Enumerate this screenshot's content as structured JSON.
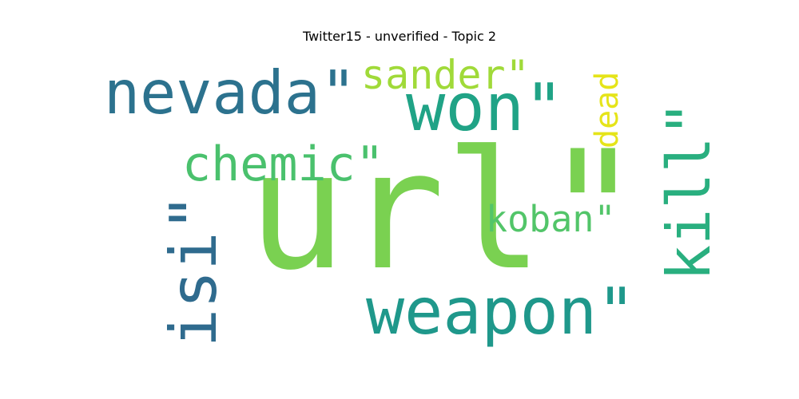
{
  "chart_data": {
    "type": "wordcloud",
    "title": "Twitter15 - unverified - Topic 2",
    "words": [
      {
        "text": "url\"",
        "color": "#7ad151",
        "weight": 1.0
      },
      {
        "text": "won\"",
        "color": "#20a386",
        "weight": 0.55
      },
      {
        "text": "nevada\"",
        "color": "#2c728e",
        "weight": 0.5
      },
      {
        "text": "weapon\"",
        "color": "#1f988b",
        "weight": 0.52
      },
      {
        "text": "isi\"",
        "color": "#2f6b8e",
        "weight": 0.55
      },
      {
        "text": "kill\"",
        "color": "#29af7f",
        "weight": 0.48
      },
      {
        "text": "chemic\"",
        "color": "#4ac16d",
        "weight": 0.4
      },
      {
        "text": "sander\"",
        "color": "#a0da39",
        "weight": 0.3
      },
      {
        "text": "koban\"",
        "color": "#52c569",
        "weight": 0.28
      },
      {
        "text": "dead",
        "color": "#e5e419",
        "weight": 0.25
      }
    ]
  }
}
